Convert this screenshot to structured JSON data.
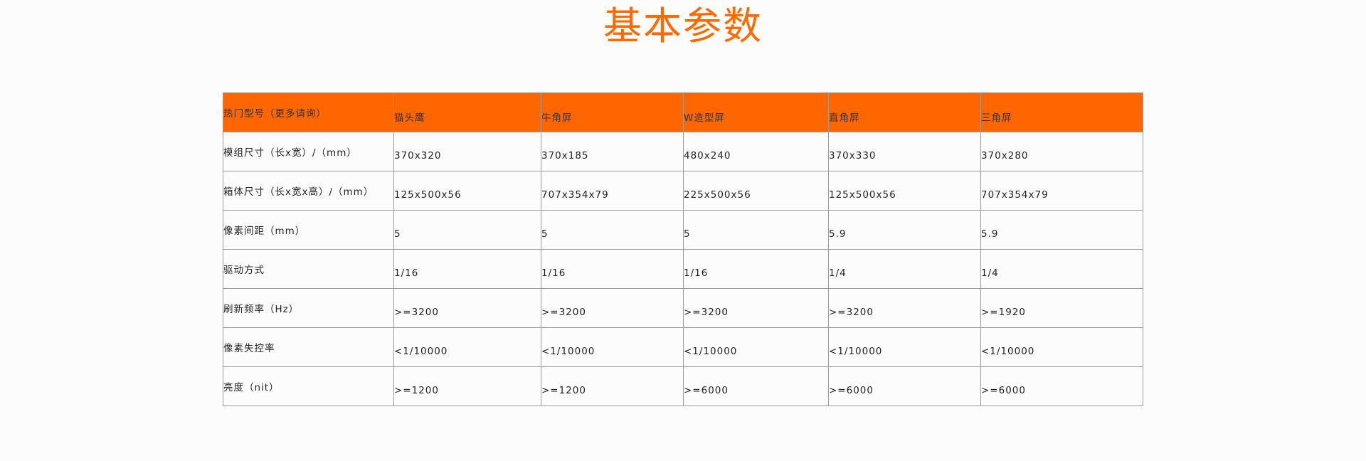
{
  "title": "基本参数",
  "colors": {
    "accent": "#ff6600"
  },
  "table": {
    "header": [
      "热门型号（更多请询）",
      "猫头鹰",
      "牛角屏",
      "W造型屏",
      "直角屏",
      "三角屏"
    ],
    "rows": [
      [
        "模组尺寸（长x宽）/（mm）",
        "370x320",
        "370x185",
        "480x240",
        "370x330",
        "370x280"
      ],
      [
        "箱体尺寸（长x宽x高）/（mm）",
        "125x500x56",
        "707x354x79",
        "225x500x56",
        "125x500x56",
        "707x354x79"
      ],
      [
        "像素间距（mm）",
        "5",
        "5",
        "5",
        "5.9",
        "5.9"
      ],
      [
        "驱动方式",
        "1/16",
        "1/16",
        "1/16",
        "1/4",
        "1/4"
      ],
      [
        "刷新频率（Hz）",
        ">=3200",
        ">=3200",
        ">=3200",
        ">=3200",
        ">=1920"
      ],
      [
        "像素失控率",
        "<1/10000",
        "<1/10000",
        "<1/10000",
        "<1/10000",
        "<1/10000"
      ],
      [
        "亮度（nit）",
        ">=1200",
        ">=1200",
        ">=6000",
        ">=6000",
        ">=6000"
      ]
    ]
  }
}
